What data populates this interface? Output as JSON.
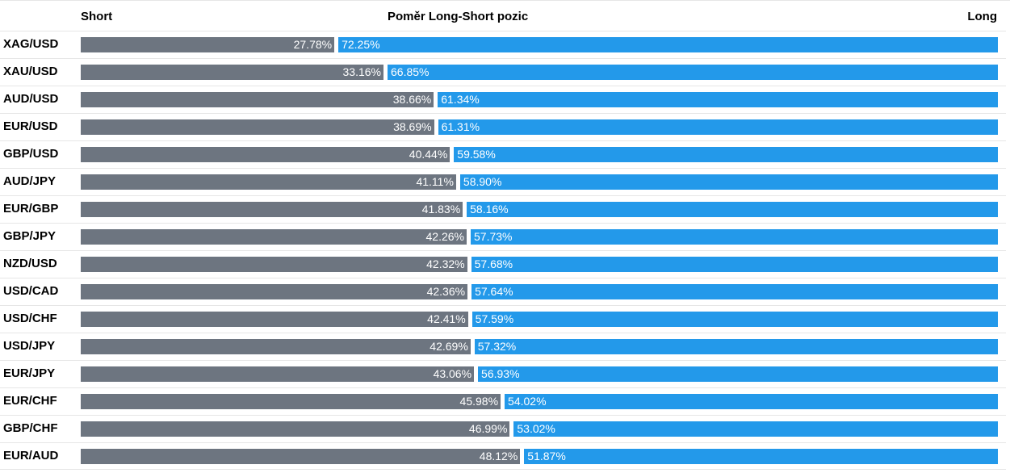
{
  "chart_data": {
    "type": "bar",
    "orientation": "horizontal",
    "stacked": true,
    "title": "Poměr Long-Short pozic",
    "legend": {
      "short": "Short",
      "long": "Long"
    },
    "categories": [
      "XAG/USD",
      "XAU/USD",
      "AUD/USD",
      "EUR/USD",
      "GBP/USD",
      "AUD/JPY",
      "EUR/GBP",
      "GBP/JPY",
      "NZD/USD",
      "USD/CAD",
      "USD/CHF",
      "USD/JPY",
      "EUR/JPY",
      "EUR/CHF",
      "GBP/CHF",
      "EUR/AUD"
    ],
    "series": [
      {
        "name": "Short",
        "color": "#6d7580",
        "values": [
          27.78,
          33.16,
          38.66,
          38.69,
          40.44,
          41.11,
          41.83,
          42.26,
          42.32,
          42.36,
          42.41,
          42.69,
          43.06,
          45.98,
          46.99,
          48.12
        ]
      },
      {
        "name": "Long",
        "color": "#2399ea",
        "values": [
          72.25,
          66.85,
          61.34,
          61.31,
          59.58,
          58.9,
          58.16,
          57.73,
          57.68,
          57.64,
          57.59,
          57.32,
          56.93,
          54.02,
          53.02,
          51.87
        ]
      }
    ],
    "labels": {
      "short": [
        "27.78%",
        "33.16%",
        "38.66%",
        "38.69%",
        "40.44%",
        "41.11%",
        "41.83%",
        "42.26%",
        "42.32%",
        "42.36%",
        "42.41%",
        "42.69%",
        "43.06%",
        "45.98%",
        "46.99%",
        "48.12%"
      ],
      "long": [
        "72.25%",
        "66.85%",
        "61.34%",
        "61.31%",
        "59.58%",
        "58.90%",
        "58.16%",
        "57.73%",
        "57.68%",
        "57.64%",
        "57.59%",
        "57.32%",
        "56.93%",
        "54.02%",
        "53.02%",
        "51.87%"
      ]
    },
    "xlim": [
      0,
      100
    ],
    "grid": false
  }
}
